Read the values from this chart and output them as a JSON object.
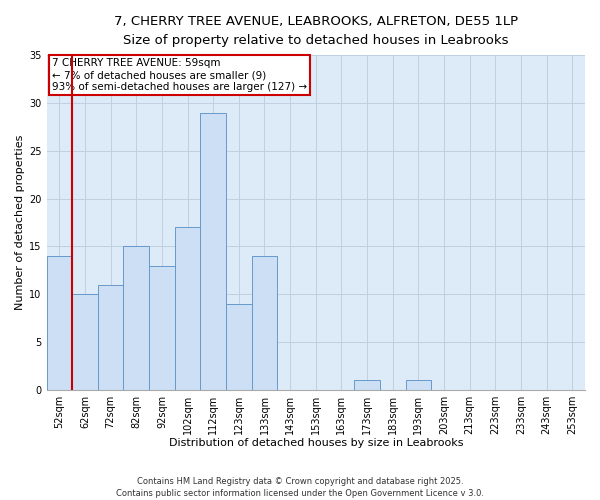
{
  "title_line1": "7, CHERRY TREE AVENUE, LEABROOKS, ALFRETON, DE55 1LP",
  "title_line2": "Size of property relative to detached houses in Leabrooks",
  "xlabel": "Distribution of detached houses by size in Leabrooks",
  "ylabel": "Number of detached properties",
  "categories": [
    "52sqm",
    "62sqm",
    "72sqm",
    "82sqm",
    "92sqm",
    "102sqm",
    "112sqm",
    "123sqm",
    "133sqm",
    "143sqm",
    "153sqm",
    "163sqm",
    "173sqm",
    "183sqm",
    "193sqm",
    "203sqm",
    "213sqm",
    "223sqm",
    "233sqm",
    "243sqm",
    "253sqm"
  ],
  "values": [
    14,
    10,
    11,
    15,
    13,
    17,
    29,
    9,
    14,
    0,
    0,
    0,
    1,
    0,
    1,
    0,
    0,
    0,
    0,
    0,
    0
  ],
  "bar_color": "#ccdff5",
  "bar_edge_color": "#6699cc",
  "annotation_text": "7 CHERRY TREE AVENUE: 59sqm\n← 7% of detached houses are smaller (9)\n93% of semi-detached houses are larger (127) →",
  "annotation_box_color": "#ffffff",
  "annotation_box_edge": "#cc0000",
  "red_line_color": "#cc0000",
  "grid_color": "#c0d0e0",
  "background_color": "#ddeaf7",
  "ylim": [
    0,
    35
  ],
  "yticks": [
    0,
    5,
    10,
    15,
    20,
    25,
    30,
    35
  ],
  "footer_text": "Contains HM Land Registry data © Crown copyright and database right 2025.\nContains public sector information licensed under the Open Government Licence v 3.0.",
  "title_fontsize": 9.5,
  "subtitle_fontsize": 8.5,
  "ylabel_fontsize": 8,
  "xlabel_fontsize": 8,
  "tick_fontsize": 7,
  "annot_fontsize": 7.5,
  "footer_fontsize": 6
}
